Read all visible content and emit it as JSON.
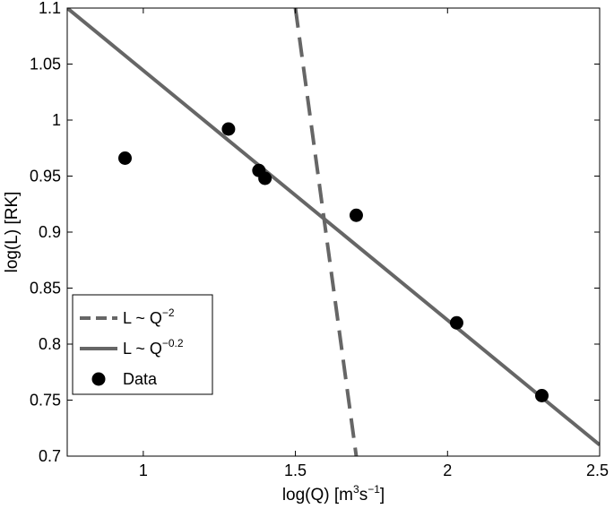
{
  "chart_data": {
    "type": "scatter",
    "title": "",
    "xlabel": {
      "base": "log(Q) [m",
      "sup1": "3",
      "mid": "s",
      "sup2": "−1",
      "end": "]"
    },
    "ylabel": "log(L) [RK]",
    "xlim": [
      0.75,
      2.5
    ],
    "ylim": [
      0.7,
      1.1
    ],
    "xticks": [
      1,
      1.5,
      2,
      2.5
    ],
    "yticks": [
      0.7,
      0.75,
      0.8,
      0.85,
      0.9,
      0.95,
      1,
      1.05,
      1.1
    ],
    "xtick_labels": [
      "1",
      "1.5",
      "2",
      "2.5"
    ],
    "ytick_labels": [
      "0.7",
      "0.75",
      "0.8",
      "0.85",
      "0.9",
      "0.95",
      "1",
      "1.05",
      "1.1"
    ],
    "grid": false,
    "legend_position": "bottom-left",
    "series": [
      {
        "name": {
          "base": "L ~ Q",
          "sup": "−2"
        },
        "kind": "line",
        "style": "dashed",
        "color": "#666666",
        "x": [
          1.5,
          1.7
        ],
        "y": [
          1.1,
          0.7
        ]
      },
      {
        "name": {
          "base": "L ~ Q",
          "sup": "−0.2"
        },
        "kind": "line",
        "style": "solid",
        "color": "#666666",
        "x": [
          0.75,
          2.5
        ],
        "y": [
          1.1,
          0.71
        ]
      },
      {
        "name": {
          "base": "Data",
          "sup": ""
        },
        "kind": "scatter",
        "color": "#000000",
        "x": [
          0.94,
          1.28,
          1.38,
          1.4,
          1.7,
          2.03,
          2.31
        ],
        "y": [
          0.966,
          0.992,
          0.955,
          0.948,
          0.915,
          0.819,
          0.754
        ]
      }
    ]
  }
}
